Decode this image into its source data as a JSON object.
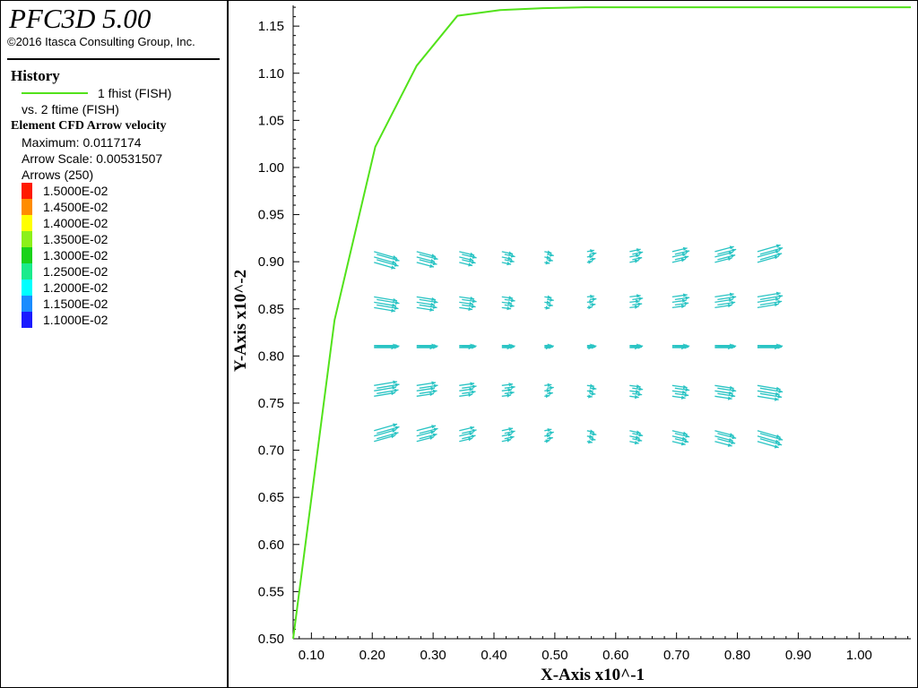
{
  "app": {
    "title": "PFC3D 5.00",
    "copyright": "©2016 Itasca Consulting Group, Inc."
  },
  "legend": {
    "history_heading": "History",
    "history_series_label": "1 fhist (FISH)",
    "history_vs_label": "vs. 2 ftime (FISH)",
    "history_line_color": "#52e21a",
    "cfd_heading": "Element CFD Arrow velocity",
    "maximum_label": "Maximum: 0.0117174",
    "arrow_scale_label": "Arrow Scale: 0.00531507",
    "arrows_label": "Arrows (250)",
    "color_scale": [
      {
        "label": "1.5000E-02",
        "color": "#ff1a00"
      },
      {
        "label": "1.4500E-02",
        "color": "#ff8c00"
      },
      {
        "label": "1.4000E-02",
        "color": "#ffff00"
      },
      {
        "label": "1.3500E-02",
        "color": "#8cf01a"
      },
      {
        "label": "1.3000E-02",
        "color": "#1ad21a"
      },
      {
        "label": "1.2500E-02",
        "color": "#1aeb8c"
      },
      {
        "label": "1.2000E-02",
        "color": "#00ffff"
      },
      {
        "label": "1.1500E-02",
        "color": "#1a8cff"
      },
      {
        "label": "1.1000E-02",
        "color": "#1a1aff"
      }
    ]
  },
  "chart_data": {
    "type": "line",
    "xlabel": "X-Axis x10^-1",
    "ylabel": "Y-Axis x10^-2",
    "xlim": [
      0.07,
      1.085
    ],
    "ylim": [
      0.5,
      1.172
    ],
    "x_ticks": [
      "0.10",
      "0.20",
      "0.30",
      "0.40",
      "0.50",
      "0.60",
      "0.70",
      "0.80",
      "0.90",
      "1.00"
    ],
    "y_ticks": [
      "0.50",
      "0.55",
      "0.60",
      "0.65",
      "0.70",
      "0.75",
      "0.80",
      "0.85",
      "0.90",
      "0.95",
      "1.00",
      "1.05",
      "1.10",
      "1.15"
    ],
    "grid": false,
    "series": [
      {
        "color": "#52e21a",
        "x": [
          0.07,
          0.138,
          0.205,
          0.273,
          0.34,
          0.41,
          0.48,
          0.55,
          0.62,
          0.7,
          0.8,
          0.9,
          1.0,
          1.085
        ],
        "y": [
          0.5,
          0.838,
          1.022,
          1.108,
          1.161,
          1.167,
          1.169,
          1.17,
          1.17,
          1.17,
          1.17,
          1.17,
          1.17,
          1.17
        ]
      }
    ],
    "arrow_field": {
      "color": "#2ac4c4",
      "x_range": [
        0.2,
        0.9
      ],
      "row_y": [
        0.905,
        0.857,
        0.81,
        0.763,
        0.715
      ],
      "columns": 10,
      "per_cell": 5
    }
  }
}
